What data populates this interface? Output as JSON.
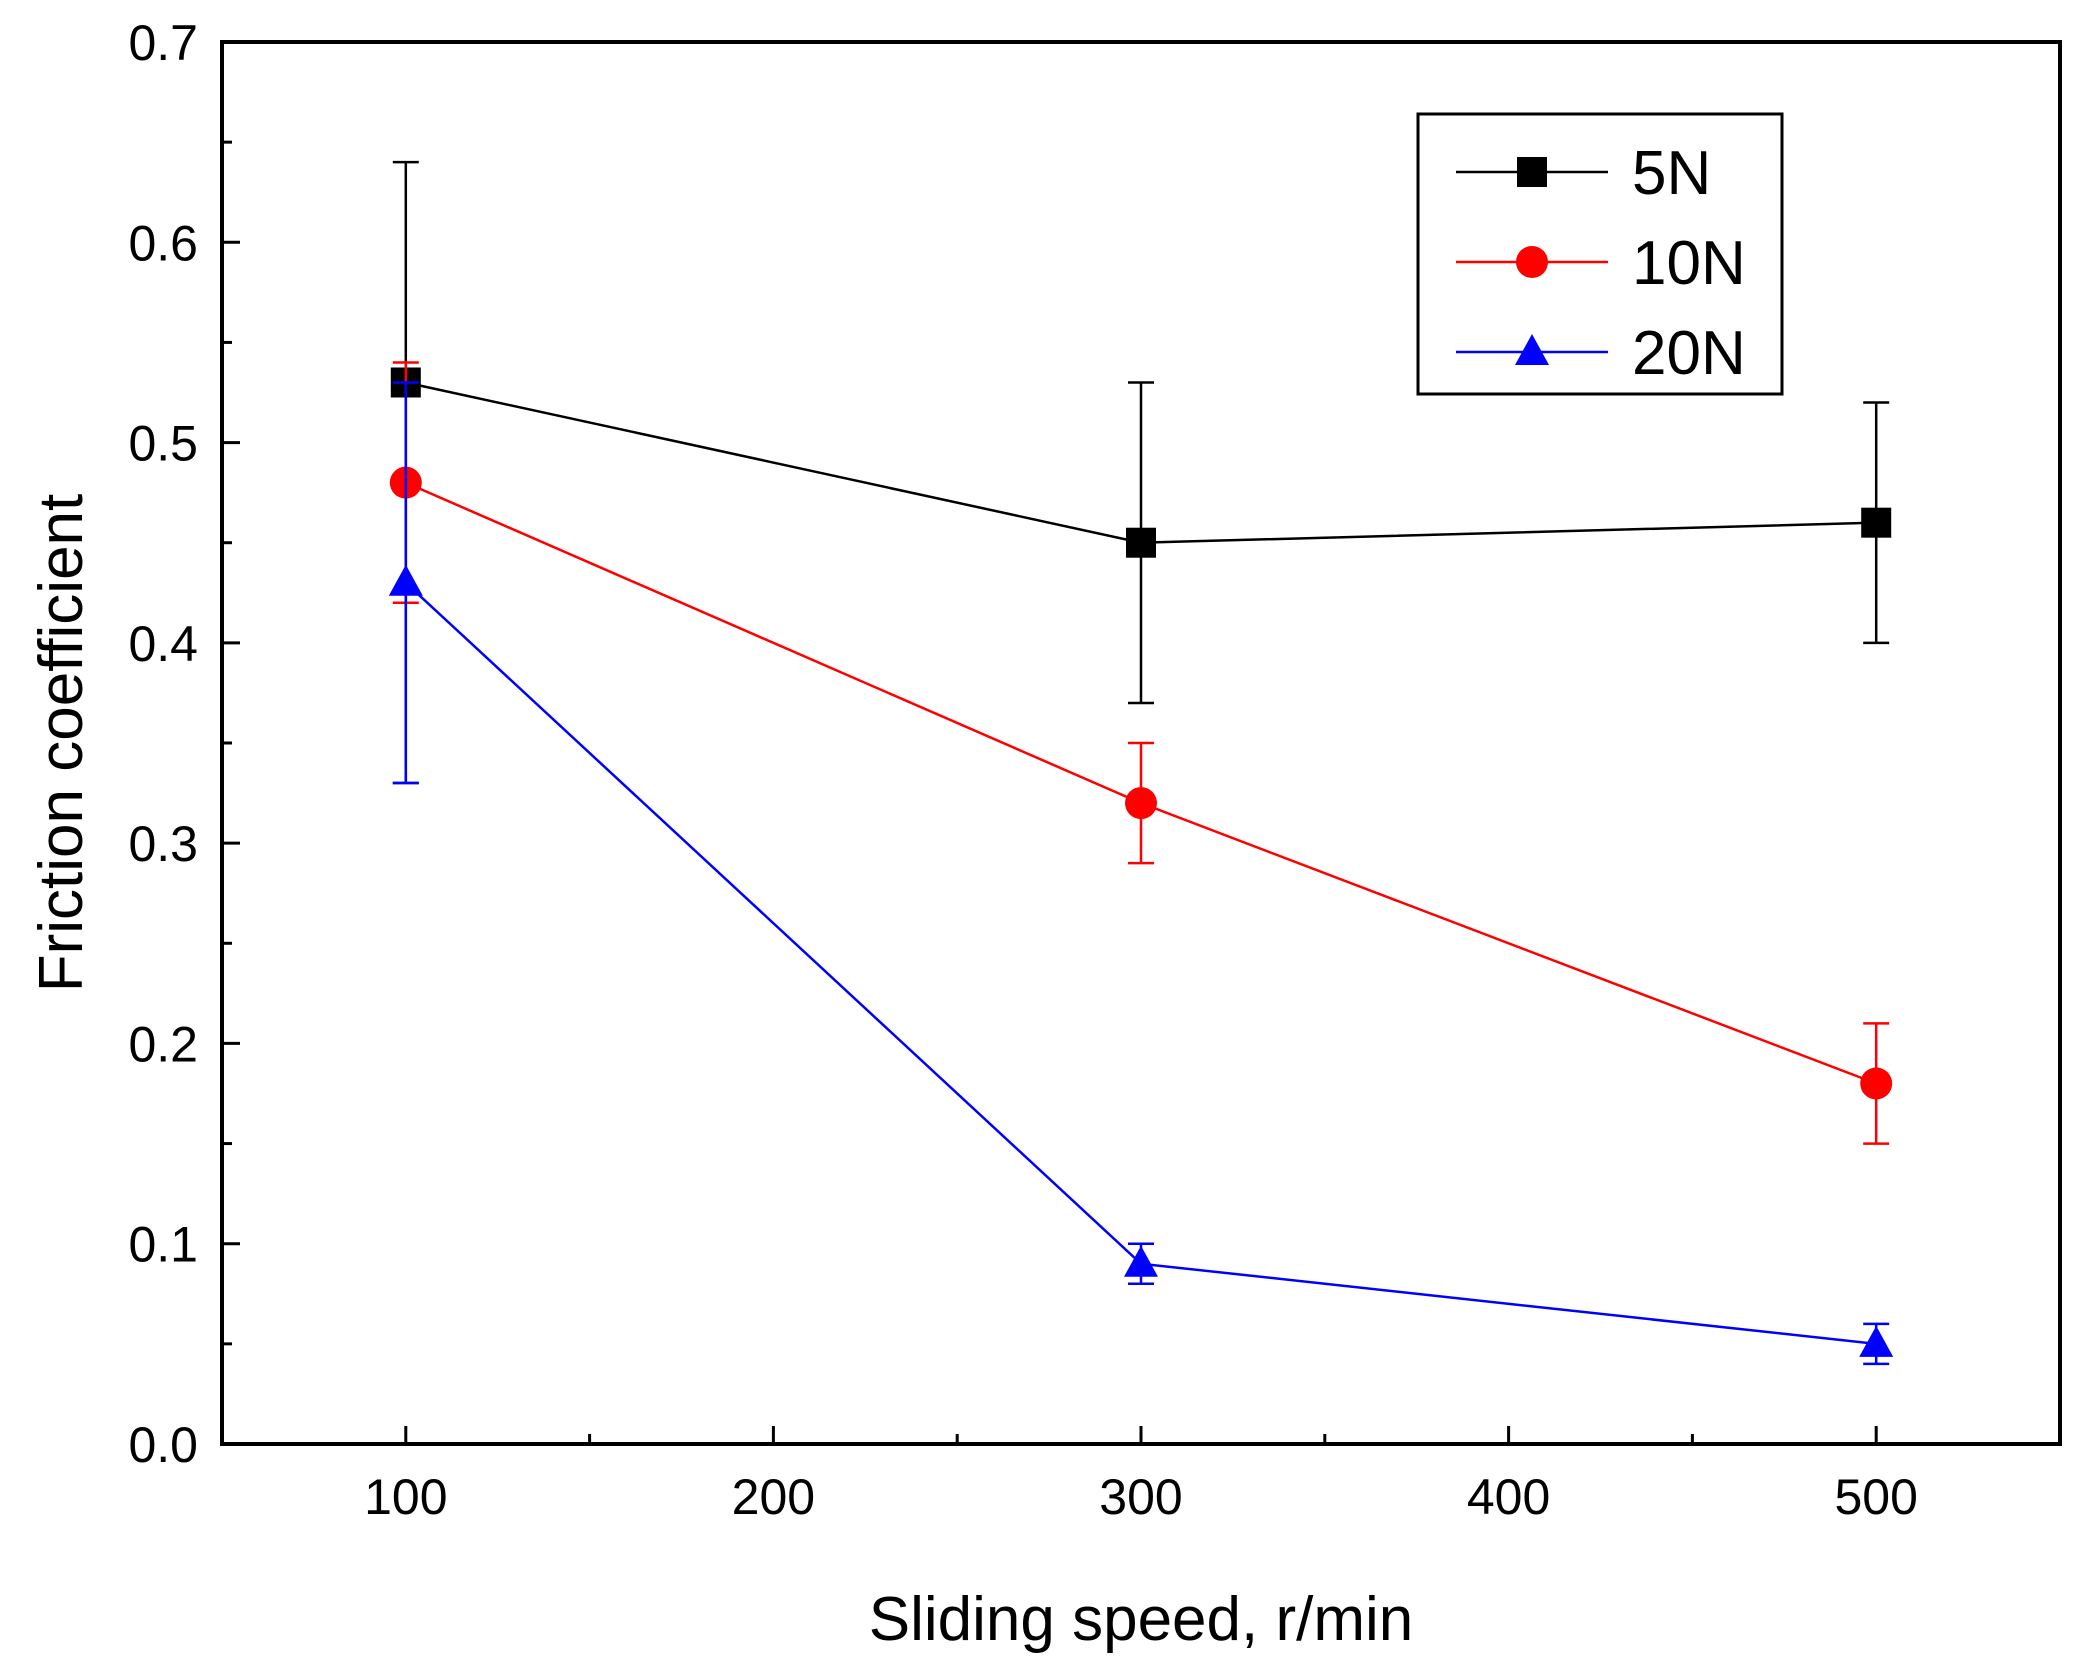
{
  "chart_data": {
    "type": "line",
    "title": "",
    "xlabel": "Sliding speed, r/min",
    "ylabel": "Friction coefficient",
    "xlim": [
      50,
      550
    ],
    "ylim": [
      0.0,
      0.7
    ],
    "x_ticks": [
      100,
      200,
      300,
      400,
      500
    ],
    "x_tick_labels": [
      "100",
      "200",
      "300",
      "400",
      "500"
    ],
    "y_ticks": [
      0.0,
      0.1,
      0.2,
      0.3,
      0.4,
      0.5,
      0.6,
      0.7
    ],
    "y_tick_labels": [
      "0.0",
      "0.1",
      "0.2",
      "0.3",
      "0.4",
      "0.5",
      "0.6",
      "0.7"
    ],
    "grid": false,
    "legend_position": "top-right",
    "x": [
      100,
      300,
      500
    ],
    "series": [
      {
        "name": "5N",
        "color": "#000000",
        "marker": "square",
        "values": [
          0.53,
          0.45,
          0.46
        ],
        "error_low": [
          0.33,
          0.37,
          0.4
        ],
        "error_high": [
          0.64,
          0.53,
          0.52
        ]
      },
      {
        "name": "10N",
        "color": "#ff0000",
        "marker": "circle",
        "values": [
          0.48,
          0.32,
          0.18
        ],
        "error_low": [
          0.42,
          0.29,
          0.15
        ],
        "error_high": [
          0.54,
          0.35,
          0.21
        ]
      },
      {
        "name": "20N",
        "color": "#0000ff",
        "marker": "triangle",
        "values": [
          0.43,
          0.09,
          0.05
        ],
        "error_low": [
          0.33,
          0.08,
          0.04
        ],
        "error_high": [
          0.53,
          0.1,
          0.06
        ]
      }
    ]
  }
}
